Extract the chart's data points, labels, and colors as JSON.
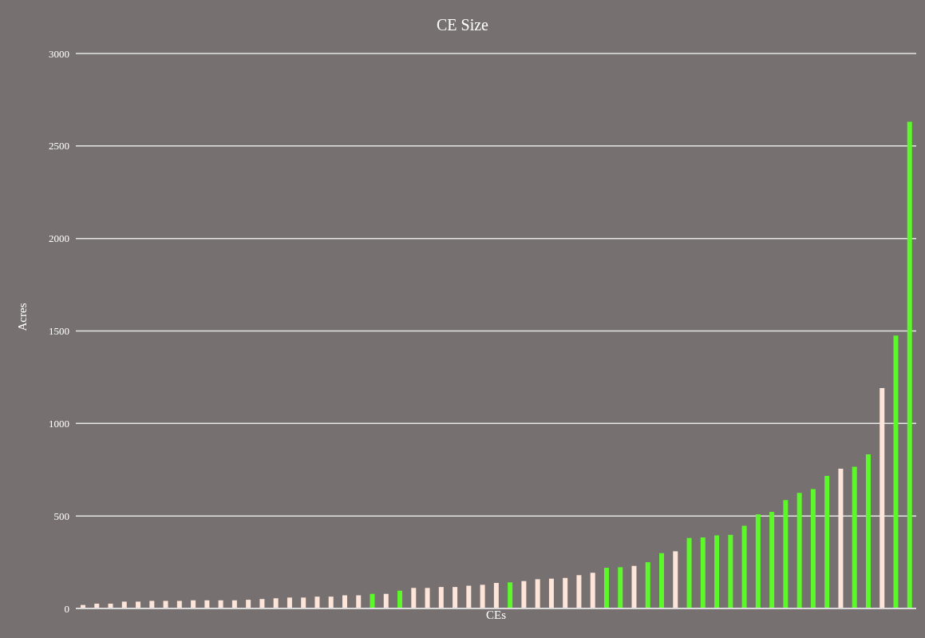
{
  "chart_data": {
    "type": "bar",
    "title": "CE Size",
    "xlabel": "CEs",
    "ylabel": "Acres",
    "categories": [
      null,
      null,
      null,
      null,
      null,
      null,
      null,
      null,
      null,
      null,
      null,
      null,
      null,
      null,
      null,
      null,
      null,
      null,
      null,
      null,
      null,
      null,
      null,
      null,
      null,
      null,
      null,
      null,
      null,
      null,
      null,
      null,
      null,
      null,
      null,
      null,
      null,
      null,
      null,
      null,
      null,
      null,
      null,
      null,
      null,
      null,
      null,
      null,
      null,
      null,
      null,
      null,
      null,
      null,
      null,
      null,
      null,
      null,
      null,
      null,
      null
    ],
    "values": [
      19,
      26,
      26,
      37,
      37,
      41,
      41,
      41,
      44,
      44,
      44,
      44,
      47,
      51,
      55,
      59,
      59,
      64,
      64,
      71,
      71,
      79,
      79,
      96,
      111,
      111,
      116,
      116,
      123,
      128,
      138,
      141,
      148,
      158,
      161,
      165,
      180,
      193,
      220,
      223,
      230,
      250,
      299,
      309,
      381,
      384,
      395,
      398,
      447,
      509,
      522,
      586,
      625,
      645,
      717,
      755,
      766,
      833,
      1191,
      1475,
      2631
    ],
    "colors": [
      "#fde5d9",
      "#fde5d9",
      "#fde5d9",
      "#fde5d9",
      "#fde5d9",
      "#fde5d9",
      "#fde5d9",
      "#fde5d9",
      "#fde5d9",
      "#fde5d9",
      "#fde5d9",
      "#fde5d9",
      "#fde5d9",
      "#fde5d9",
      "#fde5d9",
      "#fde5d9",
      "#fde5d9",
      "#fde5d9",
      "#fde5d9",
      "#fde5d9",
      "#fde5d9",
      "#5cf82a",
      "#fde5d9",
      "#5cf82a",
      "#fde5d9",
      "#fde5d9",
      "#fde5d9",
      "#fde5d9",
      "#fde5d9",
      "#fde5d9",
      "#fde5d9",
      "#5cf82a",
      "#fde5d9",
      "#fde5d9",
      "#fde5d9",
      "#fde5d9",
      "#fde5d9",
      "#fde5d9",
      "#5cf82a",
      "#5cf82a",
      "#fde5d9",
      "#5cf82a",
      "#5cf82a",
      "#fde5d9",
      "#5cf82a",
      "#5cf82a",
      "#5cf82a",
      "#5cf82a",
      "#5cf82a",
      "#5cf82a",
      "#5cf82a",
      "#5cf82a",
      "#5cf82a",
      "#5cf82a",
      "#5cf82a",
      "#fde5d9",
      "#5cf82a",
      "#5cf82a",
      "#fde5d9",
      "#5cf82a",
      "#5cf82a"
    ],
    "ylim": [
      0,
      3000
    ],
    "yticks": [
      0,
      500,
      1000,
      1500,
      2000,
      2500,
      3000
    ],
    "grid": "y"
  }
}
